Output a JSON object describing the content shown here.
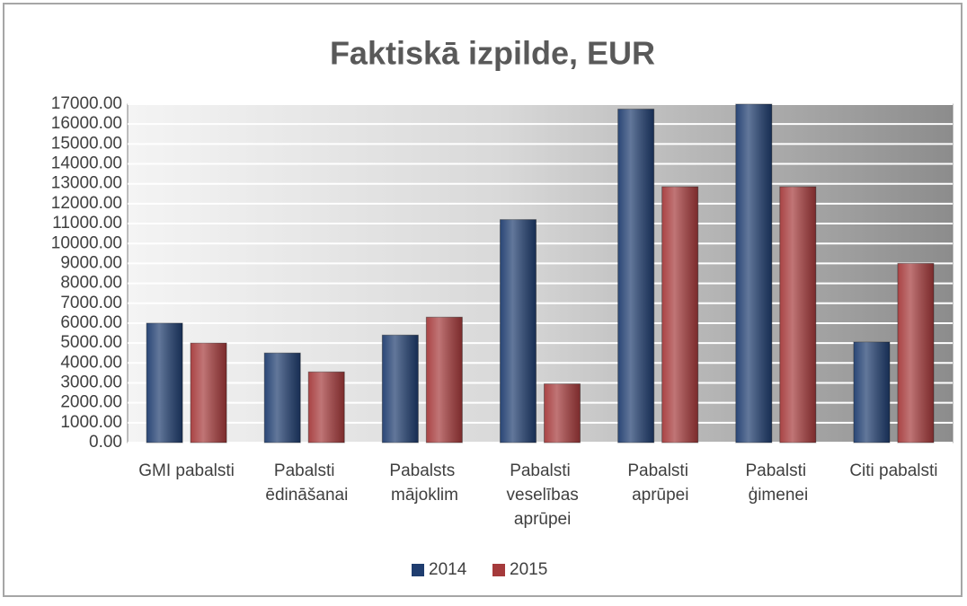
{
  "chart_data": {
    "type": "bar",
    "title": "Faktiskā izpilde, EUR",
    "categories": [
      "GMI pabalsti",
      "Pabalsti ēdināšanai",
      "Pabalsts mājoklim",
      "Pabalsti veselības aprūpei",
      "Pabalsti aprūpei",
      "Pabalsti ģimenei",
      "Citi pabalsti"
    ],
    "series": [
      {
        "name": "2014",
        "color": "#1f3d6f",
        "values": [
          6000,
          4500,
          5400,
          11200,
          16750,
          17000,
          5050
        ]
      },
      {
        "name": "2015",
        "color": "#a53a3b",
        "values": [
          5000,
          3550,
          6300,
          2950,
          12850,
          12850,
          9000
        ]
      }
    ],
    "ylim": [
      0,
      17000
    ],
    "yticks": [
      {
        "value": 0,
        "label": "0.00"
      },
      {
        "value": 1000,
        "label": "1000.00"
      },
      {
        "value": 2000,
        "label": "2000.00"
      },
      {
        "value": 3000,
        "label": "3000.00"
      },
      {
        "value": 4000,
        "label": "4000.00"
      },
      {
        "value": 5000,
        "label": "5000.00"
      },
      {
        "value": 6000,
        "label": "6000.00"
      },
      {
        "value": 7000,
        "label": "7000.00"
      },
      {
        "value": 8000,
        "label": "8000.00"
      },
      {
        "value": 9000,
        "label": "9000.00"
      },
      {
        "value": 10000,
        "label": "10000.00"
      },
      {
        "value": 11000,
        "label": "11000.00"
      },
      {
        "value": 12000,
        "label": "12000.00"
      },
      {
        "value": 13000,
        "label": "13000.00"
      },
      {
        "value": 14000,
        "label": "14000.00"
      },
      {
        "value": 15000,
        "label": "15000.00"
      },
      {
        "value": 16000,
        "label": "16000.00"
      },
      {
        "value": 17000,
        "label": "17000.00"
      }
    ],
    "grid": true,
    "legend": "bottom"
  }
}
